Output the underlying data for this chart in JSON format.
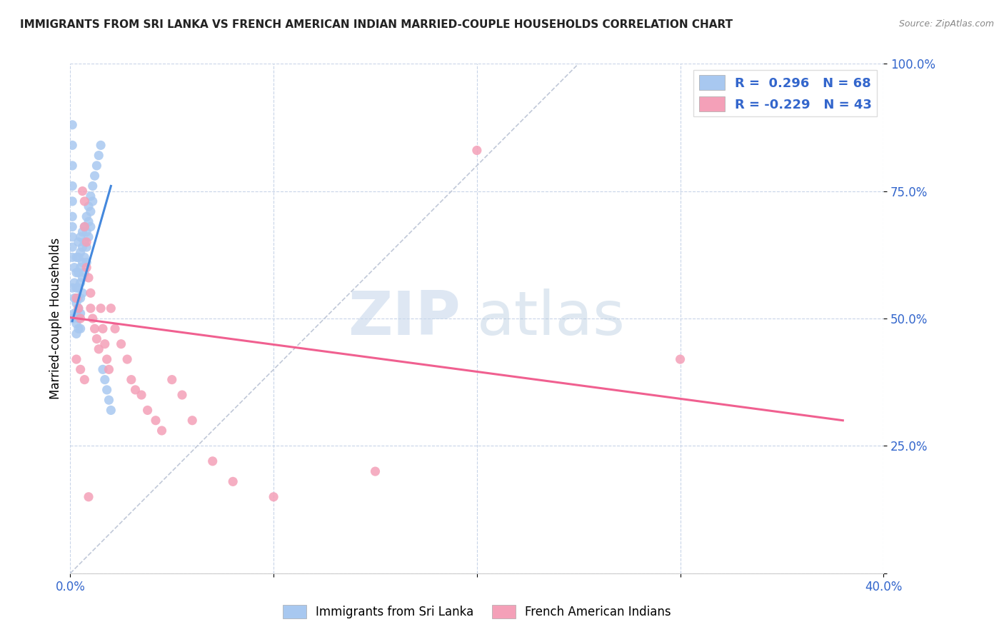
{
  "title": "IMMIGRANTS FROM SRI LANKA VS FRENCH AMERICAN INDIAN MARRIED-COUPLE HOUSEHOLDS CORRELATION CHART",
  "source": "Source: ZipAtlas.com",
  "ylabel": "Married-couple Households",
  "x_min": 0.0,
  "x_max": 0.4,
  "y_min": 0.0,
  "y_max": 1.0,
  "sri_lanka_R": 0.296,
  "sri_lanka_N": 68,
  "french_indian_R": -0.229,
  "french_indian_N": 43,
  "sri_lanka_color": "#a8c8f0",
  "french_indian_color": "#f4a0b8",
  "trendline_sri_lanka_color": "#4488dd",
  "trendline_french_indian_color": "#f06090",
  "diagonal_color": "#c0c8d8",
  "legend_label_sri_lanka": "Immigrants from Sri Lanka",
  "legend_label_french_indian": "French American Indians",
  "watermark_zip": "ZIP",
  "watermark_atlas": "atlas",
  "sri_lanka_x": [
    0.001,
    0.001,
    0.002,
    0.002,
    0.002,
    0.002,
    0.003,
    0.003,
    0.003,
    0.003,
    0.003,
    0.003,
    0.003,
    0.004,
    0.004,
    0.004,
    0.004,
    0.004,
    0.004,
    0.004,
    0.004,
    0.005,
    0.005,
    0.005,
    0.005,
    0.005,
    0.005,
    0.005,
    0.006,
    0.006,
    0.006,
    0.006,
    0.006,
    0.007,
    0.007,
    0.007,
    0.007,
    0.008,
    0.008,
    0.008,
    0.008,
    0.009,
    0.009,
    0.009,
    0.01,
    0.01,
    0.01,
    0.011,
    0.011,
    0.012,
    0.013,
    0.014,
    0.015,
    0.016,
    0.017,
    0.018,
    0.019,
    0.02,
    0.001,
    0.001,
    0.001,
    0.001,
    0.001,
    0.001,
    0.001,
    0.001,
    0.001,
    0.001
  ],
  "sri_lanka_y": [
    0.56,
    0.5,
    0.6,
    0.57,
    0.54,
    0.51,
    0.62,
    0.59,
    0.56,
    0.53,
    0.51,
    0.49,
    0.47,
    0.65,
    0.62,
    0.59,
    0.56,
    0.54,
    0.52,
    0.5,
    0.48,
    0.66,
    0.63,
    0.6,
    0.57,
    0.54,
    0.51,
    0.48,
    0.67,
    0.64,
    0.61,
    0.58,
    0.55,
    0.68,
    0.65,
    0.62,
    0.59,
    0.7,
    0.67,
    0.64,
    0.61,
    0.72,
    0.69,
    0.66,
    0.74,
    0.71,
    0.68,
    0.76,
    0.73,
    0.78,
    0.8,
    0.82,
    0.84,
    0.4,
    0.38,
    0.36,
    0.34,
    0.32,
    0.88,
    0.84,
    0.8,
    0.76,
    0.73,
    0.7,
    0.68,
    0.66,
    0.64,
    0.62
  ],
  "french_indian_x": [
    0.003,
    0.004,
    0.005,
    0.006,
    0.007,
    0.007,
    0.008,
    0.008,
    0.009,
    0.01,
    0.01,
    0.011,
    0.012,
    0.013,
    0.014,
    0.015,
    0.016,
    0.017,
    0.018,
    0.019,
    0.02,
    0.022,
    0.025,
    0.028,
    0.03,
    0.032,
    0.035,
    0.038,
    0.042,
    0.045,
    0.05,
    0.055,
    0.06,
    0.07,
    0.08,
    0.1,
    0.15,
    0.2,
    0.003,
    0.005,
    0.007,
    0.009,
    0.3
  ],
  "french_indian_y": [
    0.54,
    0.52,
    0.5,
    0.75,
    0.73,
    0.68,
    0.65,
    0.6,
    0.58,
    0.55,
    0.52,
    0.5,
    0.48,
    0.46,
    0.44,
    0.52,
    0.48,
    0.45,
    0.42,
    0.4,
    0.52,
    0.48,
    0.45,
    0.42,
    0.38,
    0.36,
    0.35,
    0.32,
    0.3,
    0.28,
    0.38,
    0.35,
    0.3,
    0.22,
    0.18,
    0.15,
    0.2,
    0.83,
    0.42,
    0.4,
    0.38,
    0.15,
    0.42
  ],
  "fi_trendline_x0": 0.0,
  "fi_trendline_y0": 0.502,
  "fi_trendline_x1": 0.38,
  "fi_trendline_y1": 0.3,
  "sl_trendline_x0": 0.001,
  "sl_trendline_y0": 0.495,
  "sl_trendline_x1": 0.02,
  "sl_trendline_y1": 0.76
}
